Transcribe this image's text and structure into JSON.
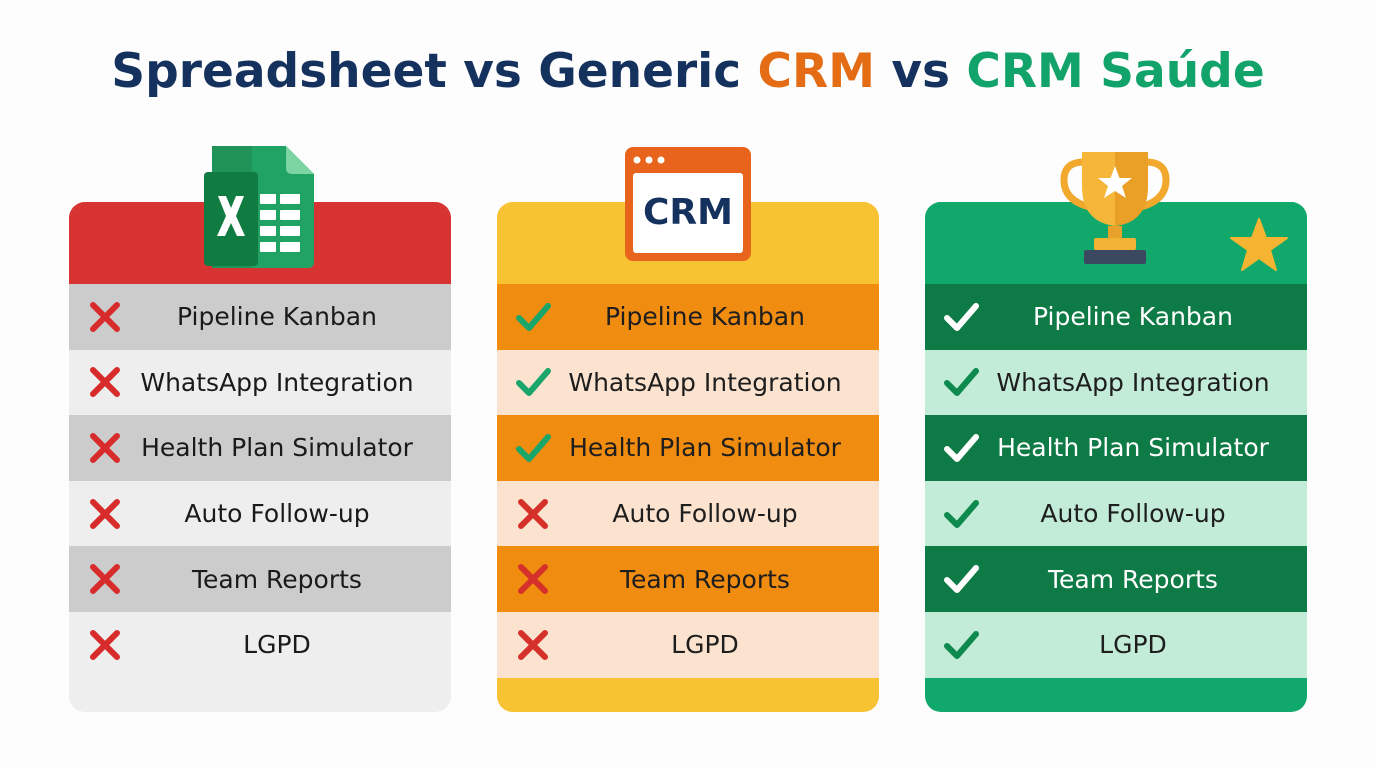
{
  "title": {
    "part1": "Spreadsheet vs Generic ",
    "part2": "CRM",
    "part3": " vs ",
    "part4": "CRM Saúde"
  },
  "colors": {
    "navy": "#15325f",
    "orange": "#e46c15",
    "green": "#12a36a",
    "spreadsheet_header": "#d73333",
    "generic_crm": "#f7c332",
    "crm_saude": "#11a86c"
  },
  "columns": [
    {
      "name": "spreadsheet",
      "icon": "excel-icon",
      "rows": [
        {
          "label": "Pipeline Kanban",
          "mark": "cross"
        },
        {
          "label": "WhatsApp Integration",
          "mark": "cross"
        },
        {
          "label": "Health Plan Simulator",
          "mark": "cross"
        },
        {
          "label": "Auto Follow-up",
          "mark": "cross"
        },
        {
          "label": "Team Reports",
          "mark": "cross"
        },
        {
          "label": "LGPD",
          "mark": "cross"
        }
      ]
    },
    {
      "name": "generic-crm",
      "icon": "crm-window-icon",
      "icon_text": "CRM",
      "rows": [
        {
          "label": "Pipeline Kanban",
          "mark": "check"
        },
        {
          "label": "WhatsApp Integration",
          "mark": "check"
        },
        {
          "label": "Health Plan Simulator",
          "mark": "check"
        },
        {
          "label": "Auto Follow-up",
          "mark": "cross"
        },
        {
          "label": "Team Reports",
          "mark": "cross"
        },
        {
          "label": "LGPD",
          "mark": "cross"
        }
      ]
    },
    {
      "name": "crm-saude",
      "icon": "trophy-icon",
      "rows": [
        {
          "label": "Pipeline Kanban",
          "mark": "check"
        },
        {
          "label": "WhatsApp Integration",
          "mark": "check"
        },
        {
          "label": "Health Plan Simulator",
          "mark": "check"
        },
        {
          "label": "Auto Follow-up",
          "mark": "check"
        },
        {
          "label": "Team Reports",
          "mark": "check"
        },
        {
          "label": "LGPD",
          "mark": "check"
        }
      ]
    }
  ]
}
